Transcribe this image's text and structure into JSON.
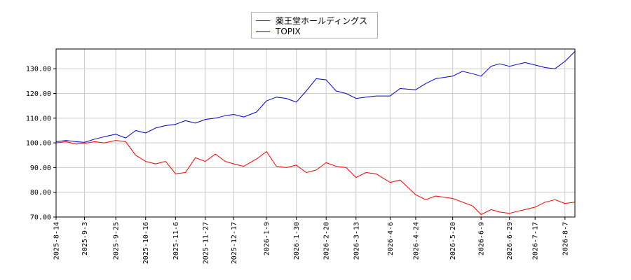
{
  "chart_data": {
    "type": "line",
    "title": "",
    "xlabel": "",
    "ylabel": "",
    "grid": true,
    "legend_position": "top-center",
    "ylim": [
      70,
      138
    ],
    "yticks": [
      70,
      80,
      90,
      100,
      110,
      120,
      130
    ],
    "ytick_labels": [
      "70.00",
      "80.00",
      "90.00",
      "100.00",
      "110.00",
      "120.00",
      "130.00"
    ],
    "xlim": [
      "2025-08-14",
      "2026-08-14"
    ],
    "xticks": [
      "2025-8-14",
      "2025-9-3",
      "2025-9-25",
      "2025-10-16",
      "2025-11-6",
      "2025-11-27",
      "2025-12-17",
      "2026-1-9",
      "2026-1-30",
      "2026-2-20",
      "2026-3-13",
      "2026-4-6",
      "2026-4-24",
      "2026-5-20",
      "2026-6-9",
      "2026-6-29",
      "2026-7-17",
      "2026-8-7"
    ],
    "x": [
      "2025-08-14",
      "2025-08-21",
      "2025-08-28",
      "2025-09-03",
      "2025-09-10",
      "2025-09-17",
      "2025-09-25",
      "2025-10-02",
      "2025-10-09",
      "2025-10-16",
      "2025-10-23",
      "2025-10-30",
      "2025-11-06",
      "2025-11-13",
      "2025-11-20",
      "2025-11-27",
      "2025-12-04",
      "2025-12-11",
      "2025-12-17",
      "2025-12-24",
      "2026-01-02",
      "2026-01-09",
      "2026-01-16",
      "2026-01-23",
      "2026-01-30",
      "2026-02-06",
      "2026-02-13",
      "2026-02-20",
      "2026-02-27",
      "2026-03-06",
      "2026-03-13",
      "2026-03-20",
      "2026-03-27",
      "2026-04-06",
      "2026-04-13",
      "2026-04-24",
      "2026-05-01",
      "2026-05-08",
      "2026-05-20",
      "2026-05-27",
      "2026-06-03",
      "2026-06-09",
      "2026-06-16",
      "2026-06-22",
      "2026-06-29",
      "2026-07-06",
      "2026-07-10",
      "2026-07-17",
      "2026-07-24",
      "2026-07-31",
      "2026-08-07",
      "2026-08-14"
    ],
    "series": [
      {
        "name": "薬王堂ホールディングス",
        "color": "#ff0000",
        "values": [
          100.0,
          100.5,
          99.5,
          99.8,
          100.5,
          100.0,
          101.0,
          100.5,
          95.0,
          92.5,
          91.5,
          92.5,
          87.5,
          88.0,
          94.0,
          92.5,
          95.5,
          92.5,
          91.5,
          90.5,
          93.5,
          96.5,
          90.5,
          90.0,
          91.0,
          88.0,
          89.0,
          92.0,
          90.5,
          90.0,
          86.0,
          88.0,
          87.5,
          84.0,
          85.0,
          79.0,
          77.0,
          78.5,
          77.5,
          76.0,
          74.5,
          71.0,
          73.0,
          72.0,
          71.5,
          72.5,
          73.0,
          74.0,
          76.0,
          77.0,
          75.5,
          76.0
        ]
      },
      {
        "name": "TOPIX",
        "color": "#0000cc",
        "values": [
          100.5,
          101.0,
          100.5,
          100.2,
          101.5,
          102.5,
          103.5,
          102.0,
          105.0,
          104.0,
          106.0,
          107.0,
          107.5,
          109.0,
          108.0,
          109.5,
          110.0,
          111.0,
          111.5,
          110.5,
          112.5,
          117.0,
          118.5,
          118.0,
          116.5,
          121.0,
          126.0,
          125.5,
          121.0,
          120.0,
          118.0,
          118.5,
          119.0,
          119.0,
          122.0,
          121.5,
          124.0,
          126.0,
          127.0,
          129.0,
          128.0,
          127.0,
          131.0,
          132.0,
          131.0,
          132.0,
          132.5,
          131.5,
          130.5,
          130.0,
          133.0,
          137.0
        ]
      }
    ]
  }
}
